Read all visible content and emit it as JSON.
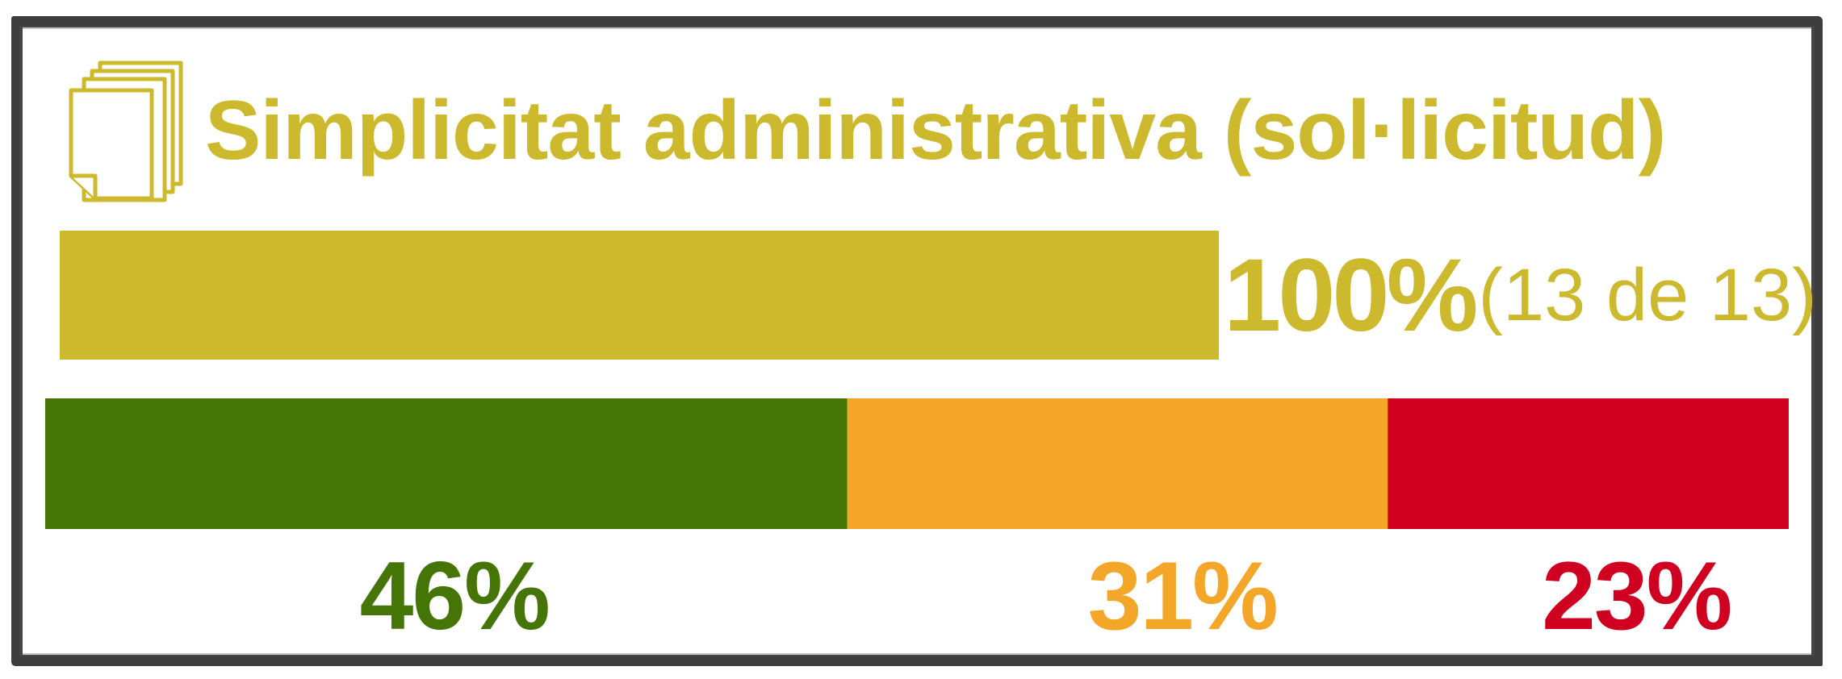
{
  "header": {
    "title": "Simplicitat administrativa (sol·licitud)",
    "icon": "stacked-documents-icon"
  },
  "colors": {
    "accent": "#cdb92e",
    "frame": "#3d3d3d",
    "background": "#ffffff"
  },
  "chart_data": [
    {
      "type": "bar",
      "orientation": "horizontal",
      "title": "",
      "values": [
        100
      ],
      "max": 100,
      "value_label": "100%",
      "count_label": "(13 de 13)",
      "color": "#cdb92e"
    },
    {
      "type": "bar",
      "orientation": "horizontal",
      "stacked": true,
      "max": 100,
      "series": [
        {
          "value": 46,
          "label": "46%",
          "color": "#457407"
        },
        {
          "value": 31,
          "label": "31%",
          "color": "#f4a629"
        },
        {
          "value": 23,
          "label": "23%",
          "color": "#cf0020"
        }
      ]
    }
  ]
}
